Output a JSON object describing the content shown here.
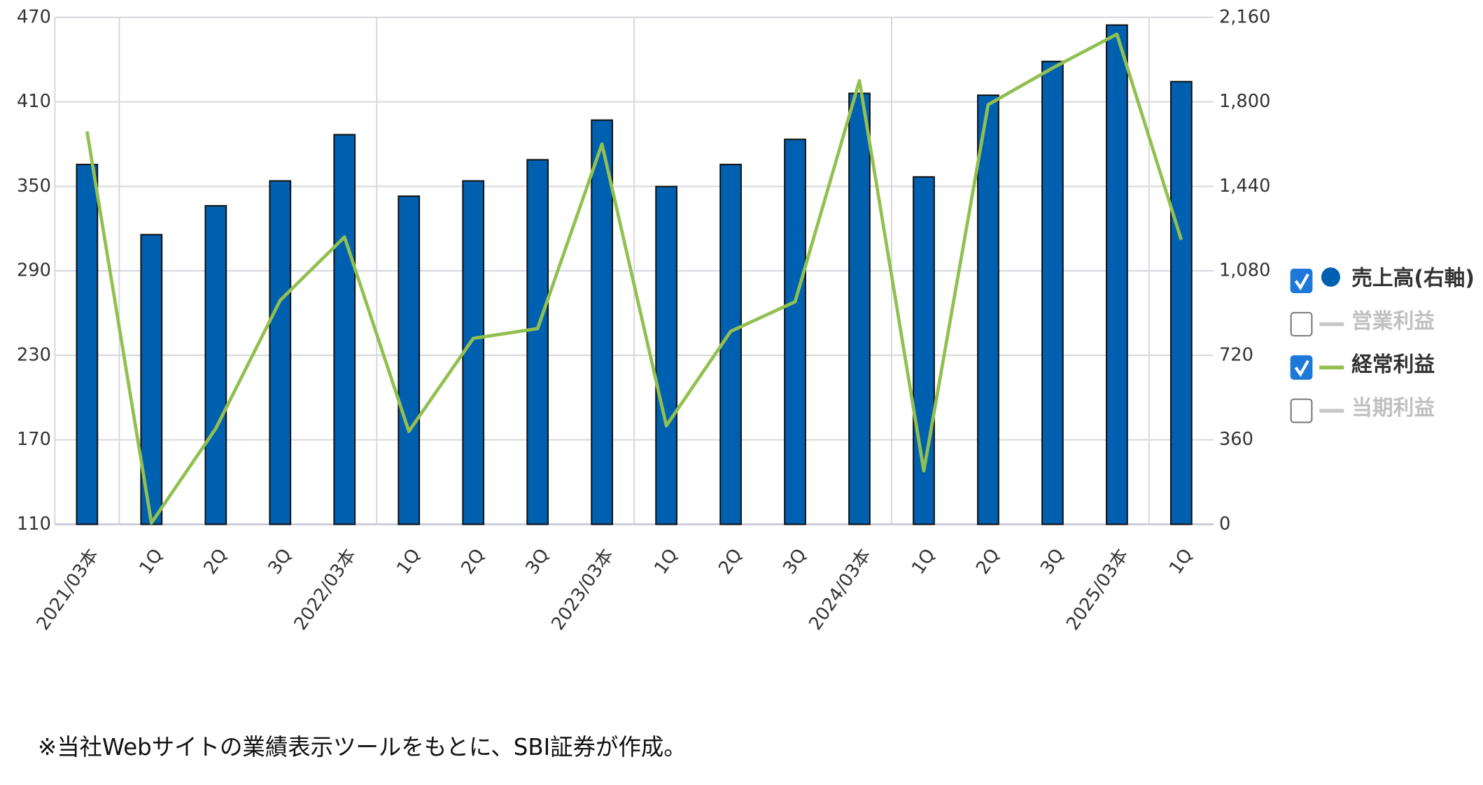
{
  "chart_data": {
    "type": "bar",
    "categories": [
      "2021/03本",
      "1Q",
      "2Q",
      "3Q",
      "2022/03本",
      "1Q",
      "2Q",
      "3Q",
      "2023/03本",
      "1Q",
      "2Q",
      "3Q",
      "2024/03本",
      "1Q",
      "2Q",
      "3Q",
      "2025/03本",
      "1Q"
    ],
    "ylim": [
      110,
      470
    ],
    "yticks": [
      110,
      170,
      230,
      290,
      350,
      410,
      470
    ],
    "y2lim": [
      0,
      2160
    ],
    "y2ticks": [
      0,
      360,
      720,
      {
        "value": 1080,
        "label": "1,080"
      },
      {
        "value": 1440,
        "label": "1,440"
      },
      {
        "value": 1800,
        "label": "1,800"
      },
      {
        "value": 2160,
        "label": "2,160"
      }
    ],
    "grid": true,
    "legend": "right",
    "series": [
      {
        "name": "売上高(右軸)",
        "type": "bar",
        "axis": "y2",
        "color": "#0060b0",
        "checked": true,
        "values": [
          1533,
          1234,
          1357,
          1463,
          1660,
          1398,
          1463,
          1553,
          1722,
          1439,
          1533,
          1640,
          1836,
          1480,
          1828,
          1972,
          2127,
          1886
        ]
      },
      {
        "name": "営業利益",
        "type": "line",
        "color": "#c8c8c8",
        "checked": false
      },
      {
        "name": "経常利益",
        "type": "line",
        "color": "#92c050",
        "checked": true,
        "values": [
          389,
          111,
          178,
          269,
          314,
          176,
          242,
          249,
          380,
          180,
          247,
          268,
          425,
          148,
          408,
          434,
          458,
          312
        ]
      },
      {
        "name": "当期利益",
        "type": "line",
        "color": "#c8c8c8",
        "checked": false
      }
    ],
    "footnote": "※当社Webサイトの業績表示ツールをもとに、SBI証券が作成。"
  }
}
